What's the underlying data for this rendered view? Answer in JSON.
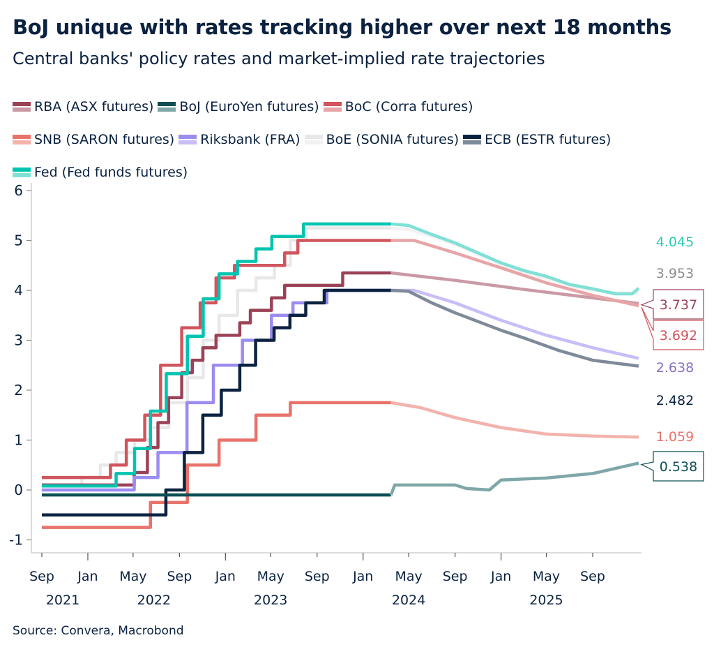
{
  "title": "BoJ unique with rates tracking higher over next 18 months",
  "subtitle": "Central banks' policy rates and market-implied rate trajectories",
  "source": "Source: Convera, Macrobond",
  "chart_data": {
    "type": "line",
    "title": "BoJ unique with rates tracking higher over next 18 months",
    "subtitle": "Central banks' policy rates and market-implied rate trajectories",
    "xlabel": "",
    "ylabel": "",
    "xlim": [
      "2021-09-01",
      "2026-01-01"
    ],
    "ylim": [
      -1,
      6
    ],
    "yticks": [
      "-1",
      "0",
      "1",
      "2",
      "3",
      "4",
      "5",
      "6"
    ],
    "xticks": [
      {
        "date": "2021-09-01",
        "label": "Sep",
        "year": "2021"
      },
      {
        "date": "2022-01-01",
        "label": "Jan",
        "year": ""
      },
      {
        "date": "2022-05-01",
        "label": "May",
        "year": "2022"
      },
      {
        "date": "2022-09-01",
        "label": "Sep",
        "year": ""
      },
      {
        "date": "2023-01-01",
        "label": "Jan",
        "year": ""
      },
      {
        "date": "2023-05-01",
        "label": "May",
        "year": "2023"
      },
      {
        "date": "2023-09-01",
        "label": "Sep",
        "year": ""
      },
      {
        "date": "2024-01-01",
        "label": "Jan",
        "year": ""
      },
      {
        "date": "2024-05-01",
        "label": "May",
        "year": "2024"
      },
      {
        "date": "2024-09-01",
        "label": "Sep",
        "year": ""
      },
      {
        "date": "2025-01-01",
        "label": "Jan",
        "year": ""
      },
      {
        "date": "2025-05-01",
        "label": "May",
        "year": "2025"
      },
      {
        "date": "2025-09-01",
        "label": "Sep",
        "year": ""
      }
    ],
    "grid": false,
    "legend_position": "top",
    "series": [
      {
        "name": "BoE (SONIA futures)",
        "color": "#e8e8e8",
        "forecast_color": "#f2f2f2",
        "end_label": "3.953",
        "label_color": "#8c8c8c",
        "label_boxed": false,
        "history": [
          [
            "2021-09-01",
            0.1
          ],
          [
            "2021-12-16",
            0.25
          ],
          [
            "2022-02-03",
            0.5
          ],
          [
            "2022-03-17",
            0.75
          ],
          [
            "2022-05-05",
            1.0
          ],
          [
            "2022-06-16",
            1.25
          ],
          [
            "2022-08-04",
            1.75
          ],
          [
            "2022-09-22",
            2.25
          ],
          [
            "2022-11-03",
            3.0
          ],
          [
            "2022-12-15",
            3.5
          ],
          [
            "2023-02-02",
            4.0
          ],
          [
            "2023-03-23",
            4.25
          ],
          [
            "2023-05-11",
            4.5
          ],
          [
            "2023-06-22",
            5.0
          ],
          [
            "2023-08-03",
            5.25
          ],
          [
            "2024-03-15",
            5.25
          ]
        ],
        "forecast": [
          [
            "2024-03-15",
            5.25
          ],
          [
            "2024-05-01",
            5.22
          ],
          [
            "2024-07-01",
            5.08
          ],
          [
            "2024-09-01",
            4.92
          ],
          [
            "2024-11-01",
            4.72
          ],
          [
            "2025-01-01",
            4.52
          ],
          [
            "2025-03-01",
            4.37
          ],
          [
            "2025-05-01",
            4.24
          ],
          [
            "2025-07-01",
            4.1
          ],
          [
            "2025-09-01",
            4.0
          ],
          [
            "2025-11-01",
            3.95
          ],
          [
            "2026-01-01",
            3.953
          ]
        ]
      },
      {
        "name": "RBA (ASX futures)",
        "color": "#9b4257",
        "forecast_color": "#c99aa6",
        "end_label": "3.737",
        "label_color": "#9b4257",
        "label_boxed": true,
        "history": [
          [
            "2021-09-01",
            0.1
          ],
          [
            "2022-05-04",
            0.35
          ],
          [
            "2022-06-08",
            0.85
          ],
          [
            "2022-07-06",
            1.35
          ],
          [
            "2022-08-03",
            1.85
          ],
          [
            "2022-09-07",
            2.35
          ],
          [
            "2022-10-05",
            2.6
          ],
          [
            "2022-11-02",
            2.85
          ],
          [
            "2022-12-07",
            3.1
          ],
          [
            "2023-02-08",
            3.35
          ],
          [
            "2023-03-08",
            3.6
          ],
          [
            "2023-05-03",
            3.85
          ],
          [
            "2023-06-07",
            4.1
          ],
          [
            "2023-11-08",
            4.35
          ],
          [
            "2024-03-15",
            4.35
          ]
        ],
        "forecast": [
          [
            "2024-03-15",
            4.35
          ],
          [
            "2024-09-01",
            4.2
          ],
          [
            "2025-03-01",
            4.02
          ],
          [
            "2025-09-01",
            3.85
          ],
          [
            "2026-01-01",
            3.737
          ]
        ]
      },
      {
        "name": "BoC (Corra futures)",
        "color": "#d0555e",
        "forecast_color": "#e8a5a8",
        "end_label": "3.692",
        "label_color": "#d0555e",
        "label_boxed": true,
        "history": [
          [
            "2021-09-01",
            0.25
          ],
          [
            "2022-03-02",
            0.5
          ],
          [
            "2022-04-13",
            1.0
          ],
          [
            "2022-06-01",
            1.5
          ],
          [
            "2022-07-13",
            2.5
          ],
          [
            "2022-09-07",
            3.25
          ],
          [
            "2022-10-26",
            3.75
          ],
          [
            "2022-12-07",
            4.25
          ],
          [
            "2023-01-25",
            4.5
          ],
          [
            "2023-06-07",
            4.75
          ],
          [
            "2023-07-12",
            5.0
          ],
          [
            "2024-03-15",
            5.0
          ]
        ],
        "forecast": [
          [
            "2024-03-15",
            5.0
          ],
          [
            "2024-05-15",
            5.0
          ],
          [
            "2024-09-01",
            4.75
          ],
          [
            "2025-01-01",
            4.45
          ],
          [
            "2025-05-01",
            4.15
          ],
          [
            "2025-09-01",
            3.9
          ],
          [
            "2026-01-01",
            3.692
          ]
        ]
      },
      {
        "name": "SNB (SARON futures)",
        "color": "#e8736b",
        "forecast_color": "#f2b3ad",
        "end_label": "1.059",
        "label_color": "#e8736b",
        "label_boxed": false,
        "history": [
          [
            "2021-09-01",
            -0.75
          ],
          [
            "2022-06-16",
            -0.25
          ],
          [
            "2022-09-22",
            0.5
          ],
          [
            "2022-12-15",
            1.0
          ],
          [
            "2023-03-23",
            1.5
          ],
          [
            "2023-06-22",
            1.75
          ],
          [
            "2024-03-15",
            1.75
          ]
        ],
        "forecast": [
          [
            "2024-03-15",
            1.75
          ],
          [
            "2024-06-01",
            1.65
          ],
          [
            "2024-09-01",
            1.45
          ],
          [
            "2025-01-01",
            1.25
          ],
          [
            "2025-05-01",
            1.12
          ],
          [
            "2025-09-01",
            1.08
          ],
          [
            "2026-01-01",
            1.059
          ]
        ]
      },
      {
        "name": "Riksbank (FRA)",
        "color": "#9b8cf0",
        "forecast_color": "#c9bdf7",
        "end_label": "2.638",
        "label_color": "#8a6fc0",
        "label_boxed": false,
        "history": [
          [
            "2021-09-01",
            0.0
          ],
          [
            "2022-05-04",
            0.25
          ],
          [
            "2022-07-06",
            0.75
          ],
          [
            "2022-09-21",
            1.75
          ],
          [
            "2022-11-30",
            2.5
          ],
          [
            "2023-02-15",
            3.0
          ],
          [
            "2023-05-03",
            3.5
          ],
          [
            "2023-06-29",
            3.75
          ],
          [
            "2023-09-27",
            4.0
          ],
          [
            "2024-03-15",
            4.0
          ]
        ],
        "forecast": [
          [
            "2024-03-15",
            4.0
          ],
          [
            "2024-05-15",
            4.0
          ],
          [
            "2024-09-01",
            3.75
          ],
          [
            "2025-01-01",
            3.4
          ],
          [
            "2025-05-01",
            3.1
          ],
          [
            "2025-09-01",
            2.85
          ],
          [
            "2026-01-01",
            2.638
          ]
        ]
      },
      {
        "name": "ECB (ESTR futures)",
        "color": "#0b2240",
        "forecast_color": "#7e8a99",
        "end_label": "2.482",
        "label_color": "#0b2240",
        "label_boxed": false,
        "history": [
          [
            "2021-09-01",
            -0.5
          ],
          [
            "2022-07-27",
            0.0
          ],
          [
            "2022-09-14",
            0.75
          ],
          [
            "2022-11-02",
            1.5
          ],
          [
            "2022-12-21",
            2.0
          ],
          [
            "2023-02-08",
            2.5
          ],
          [
            "2023-03-22",
            3.0
          ],
          [
            "2023-05-10",
            3.25
          ],
          [
            "2023-06-21",
            3.5
          ],
          [
            "2023-08-02",
            3.75
          ],
          [
            "2023-09-20",
            4.0
          ],
          [
            "2024-03-15",
            4.0
          ]
        ],
        "forecast": [
          [
            "2024-03-15",
            4.0
          ],
          [
            "2024-05-01",
            3.98
          ],
          [
            "2024-07-01",
            3.75
          ],
          [
            "2024-09-01",
            3.55
          ],
          [
            "2025-01-01",
            3.2
          ],
          [
            "2025-03-01",
            3.05
          ],
          [
            "2025-06-01",
            2.8
          ],
          [
            "2025-09-01",
            2.6
          ],
          [
            "2026-01-01",
            2.482
          ]
        ]
      },
      {
        "name": "Fed (Fed funds futures)",
        "color": "#00c4b0",
        "forecast_color": "#7fe0d6",
        "end_label": "4.045",
        "label_color": "#2bc9b4",
        "label_boxed": false,
        "history": [
          [
            "2021-09-01",
            0.08
          ],
          [
            "2022-03-17",
            0.33
          ],
          [
            "2022-05-05",
            0.83
          ],
          [
            "2022-06-16",
            1.58
          ],
          [
            "2022-07-28",
            2.33
          ],
          [
            "2022-09-22",
            3.08
          ],
          [
            "2022-11-03",
            3.83
          ],
          [
            "2022-12-15",
            4.33
          ],
          [
            "2023-02-02",
            4.58
          ],
          [
            "2023-03-23",
            4.83
          ],
          [
            "2023-05-04",
            5.08
          ],
          [
            "2023-07-27",
            5.33
          ],
          [
            "2024-03-15",
            5.33
          ]
        ],
        "forecast": [
          [
            "2024-03-15",
            5.33
          ],
          [
            "2024-05-01",
            5.3
          ],
          [
            "2024-07-01",
            5.12
          ],
          [
            "2024-09-01",
            4.95
          ],
          [
            "2024-11-01",
            4.75
          ],
          [
            "2025-01-01",
            4.55
          ],
          [
            "2025-03-01",
            4.4
          ],
          [
            "2025-05-01",
            4.28
          ],
          [
            "2025-07-01",
            4.12
          ],
          [
            "2025-09-01",
            4.03
          ],
          [
            "2025-11-01",
            3.93
          ],
          [
            "2025-12-15",
            3.93
          ],
          [
            "2026-01-01",
            4.045
          ]
        ]
      },
      {
        "name": "BoJ (EuroYen futures)",
        "color": "#0d4f53",
        "forecast_color": "#7fa7a8",
        "end_label": "0.538",
        "label_color": "#0d4f53",
        "label_boxed": true,
        "history": [
          [
            "2021-09-01",
            -0.1
          ],
          [
            "2024-03-15",
            -0.1
          ]
        ],
        "forecast": [
          [
            "2024-03-15",
            -0.1
          ],
          [
            "2024-03-25",
            0.1
          ],
          [
            "2024-09-01",
            0.1
          ],
          [
            "2024-10-01",
            0.03
          ],
          [
            "2024-12-01",
            0.0
          ],
          [
            "2025-01-01",
            0.2
          ],
          [
            "2025-05-01",
            0.24
          ],
          [
            "2025-09-01",
            0.33
          ],
          [
            "2026-01-01",
            0.538
          ]
        ]
      }
    ],
    "legend_order": [
      "RBA (ASX futures)",
      "BoJ (EuroYen futures)",
      "BoC (Corra futures)",
      "SNB (SARON futures)",
      "Riksbank (FRA)",
      "BoE (SONIA futures)",
      "ECB (ESTR futures)",
      "Fed (Fed funds futures)"
    ]
  }
}
